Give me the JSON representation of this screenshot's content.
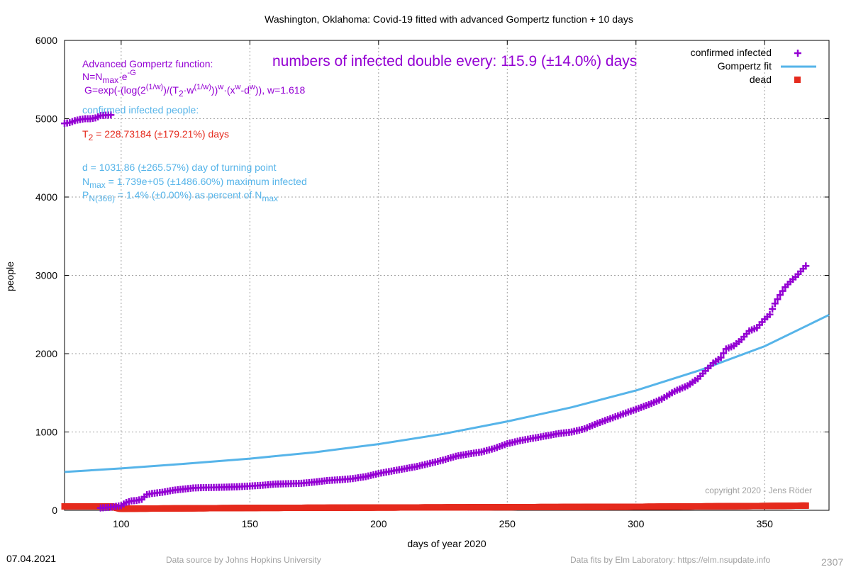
{
  "chart_data": {
    "type": "scatter",
    "title": "Washington,  Oklahoma: Covid-19 fitted with advanced Gompertz function + 10 days",
    "xlabel": "days of year 2020",
    "ylabel": "people",
    "xlim": [
      78,
      375
    ],
    "ylim": [
      0,
      6000
    ],
    "x_ticks": [
      100,
      150,
      200,
      250,
      300,
      350
    ],
    "y_ticks": [
      0,
      1000,
      2000,
      3000,
      4000,
      5000,
      6000
    ],
    "grid": true,
    "legend_position": "top-right",
    "legend": [
      "confirmed infected",
      "Gompertz fit",
      "dead"
    ],
    "series": [
      {
        "name": "confirmed infected",
        "color": "#9400d3",
        "marker": "plus",
        "points_upper_segment": [
          [
            78,
            4940
          ],
          [
            80,
            4950
          ],
          [
            82,
            4975
          ],
          [
            84,
            4990
          ],
          [
            86,
            5000
          ],
          [
            88,
            5000
          ],
          [
            90,
            5010
          ],
          [
            92,
            5040
          ],
          [
            94,
            5045
          ],
          [
            96,
            5048
          ]
        ],
        "points": [
          [
            92,
            30
          ],
          [
            96,
            40
          ],
          [
            100,
            60
          ],
          [
            102,
            100
          ],
          [
            104,
            120
          ],
          [
            106,
            125
          ],
          [
            108,
            140
          ],
          [
            110,
            200
          ],
          [
            112,
            215
          ],
          [
            116,
            230
          ],
          [
            120,
            255
          ],
          [
            124,
            270
          ],
          [
            128,
            285
          ],
          [
            132,
            290
          ],
          [
            136,
            292
          ],
          [
            140,
            295
          ],
          [
            145,
            300
          ],
          [
            150,
            310
          ],
          [
            155,
            320
          ],
          [
            160,
            335
          ],
          [
            165,
            340
          ],
          [
            170,
            345
          ],
          [
            175,
            360
          ],
          [
            180,
            380
          ],
          [
            185,
            390
          ],
          [
            190,
            405
          ],
          [
            195,
            430
          ],
          [
            200,
            470
          ],
          [
            205,
            500
          ],
          [
            210,
            530
          ],
          [
            215,
            560
          ],
          [
            220,
            600
          ],
          [
            225,
            640
          ],
          [
            230,
            690
          ],
          [
            235,
            720
          ],
          [
            240,
            745
          ],
          [
            245,
            790
          ],
          [
            250,
            850
          ],
          [
            255,
            890
          ],
          [
            260,
            920
          ],
          [
            265,
            950
          ],
          [
            270,
            980
          ],
          [
            275,
            1000
          ],
          [
            280,
            1040
          ],
          [
            285,
            1110
          ],
          [
            290,
            1170
          ],
          [
            295,
            1230
          ],
          [
            300,
            1290
          ],
          [
            305,
            1350
          ],
          [
            310,
            1420
          ],
          [
            315,
            1520
          ],
          [
            320,
            1590
          ],
          [
            324,
            1680
          ],
          [
            327,
            1780
          ],
          [
            330,
            1880
          ],
          [
            333,
            1950
          ],
          [
            335,
            2060
          ],
          [
            338,
            2100
          ],
          [
            341,
            2180
          ],
          [
            344,
            2290
          ],
          [
            347,
            2330
          ],
          [
            350,
            2440
          ],
          [
            352,
            2500
          ],
          [
            354,
            2640
          ],
          [
            356,
            2750
          ],
          [
            358,
            2850
          ],
          [
            360,
            2920
          ],
          [
            362,
            2980
          ],
          [
            364,
            3050
          ],
          [
            366,
            3120
          ]
        ]
      },
      {
        "name": "Gompertz fit",
        "color": "#56b4e9",
        "points": [
          [
            78,
            490
          ],
          [
            100,
            535
          ],
          [
            125,
            595
          ],
          [
            150,
            660
          ],
          [
            175,
            740
          ],
          [
            200,
            845
          ],
          [
            225,
            975
          ],
          [
            250,
            1135
          ],
          [
            275,
            1315
          ],
          [
            300,
            1530
          ],
          [
            325,
            1790
          ],
          [
            350,
            2095
          ],
          [
            375,
            2495
          ]
        ]
      },
      {
        "name": "dead",
        "color": "#e52a1d",
        "marker": "square",
        "points": [
          [
            78,
            50
          ],
          [
            96,
            50
          ],
          [
            100,
            20
          ],
          [
            125,
            25
          ],
          [
            150,
            30
          ],
          [
            200,
            35
          ],
          [
            250,
            40
          ],
          [
            300,
            45
          ],
          [
            350,
            55
          ],
          [
            366,
            60
          ]
        ]
      }
    ],
    "annotations": {
      "formula_heading": "Advanced Gompertz function:",
      "formula_n": "N=N",
      "formula_n_sub": "max",
      "formula_n_rest": "·e",
      "formula_n_sup": "-G",
      "formula_g_1": "G=exp(-(log(2",
      "formula_g_sup1": "(1/w)",
      "formula_g_2": ")/(T",
      "formula_g_sub2": "2",
      "formula_g_3": "·w",
      "formula_g_sup2": "(1/w)",
      "formula_g_4": "))",
      "formula_g_sup3": "w",
      "formula_g_5": "·(x",
      "formula_g_sup4": "w",
      "formula_g_6": "-d",
      "formula_g_sup5": "w",
      "formula_g_7": ")), w=1.618",
      "double_every": "numbers of infected double every: 115.9 (±14.0%) days",
      "confirmed_heading": "confirmed infected people:",
      "t2_main": "T",
      "t2_sub": "2",
      "t2_rest": " = 228.73184 (±179.21%) days",
      "d_line": "d = 1031.86 (±265.57%) day of turning point",
      "nmax_main": "N",
      "nmax_sub": "max",
      "nmax_rest": " = 1.739e+05 (±1486.60%) maximum infected",
      "p_main": "P",
      "p_sub": "N(366)",
      "p_rest": " = 1.4% (±0.00%) as percent of N",
      "p_sub2": "max",
      "copyright": "copyright 2020 - Jens Röder"
    }
  },
  "footer": {
    "date": "07.04.2021",
    "source": "Data source by Johns Hopkins University",
    "fits": "Data fits by Elm Laboratory: https://elm.nsupdate.info",
    "number": "2307"
  },
  "colors": {
    "purple": "#9400d3",
    "blue": "#56b4e9",
    "red": "#e52a1d",
    "grid": "#a0a0a0",
    "copyright": "#a0a0a0"
  }
}
